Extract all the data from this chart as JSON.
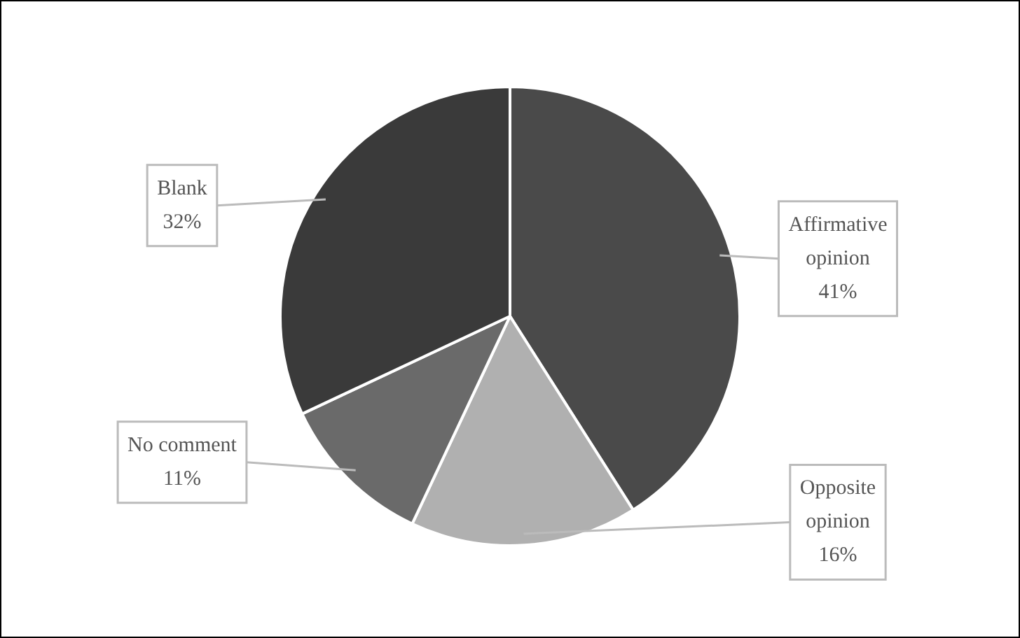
{
  "chart_data": {
    "type": "pie",
    "categories": [
      "Affirmative opinion",
      "Opposite opinion",
      "No comment",
      "Blank"
    ],
    "values": [
      41,
      16,
      11,
      32
    ],
    "colors": [
      "#4a4a4a",
      "#b0b0b0",
      "#6a6a6a",
      "#3a3a3a"
    ],
    "value_labels": [
      "41%",
      "16%",
      "11%",
      "32%"
    ],
    "legend": false
  }
}
